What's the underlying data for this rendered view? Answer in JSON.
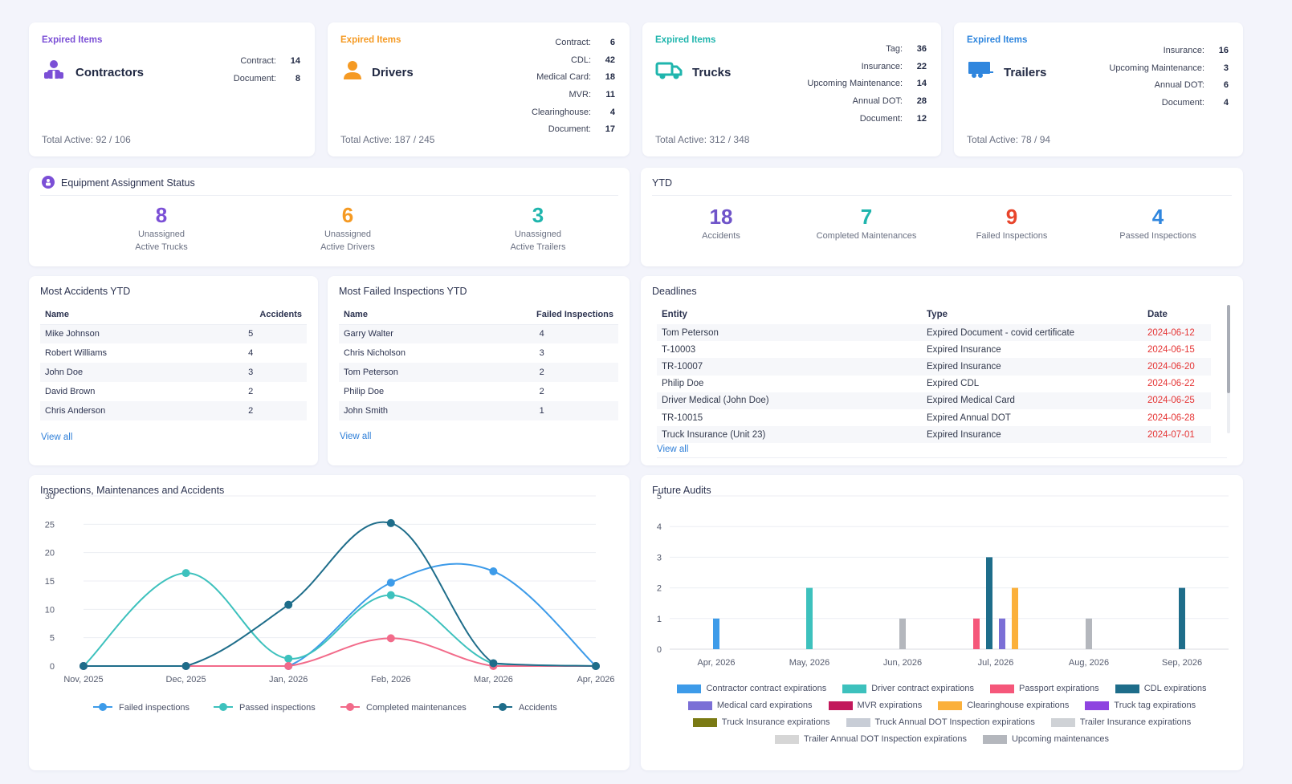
{
  "expired_label": "Expired Items",
  "cards": [
    {
      "title": "Contractors",
      "total": "Total Active: 92 / 106",
      "accent": "#7b4fd6",
      "stats": [
        {
          "label": "Contract:",
          "value": "14"
        },
        {
          "label": "Document:",
          "value": "8"
        }
      ]
    },
    {
      "title": "Drivers",
      "total": "Total Active: 187 / 245",
      "accent": "#f59a23",
      "stats": [
        {
          "label": "Contract:",
          "value": "6"
        },
        {
          "label": "CDL:",
          "value": "42"
        },
        {
          "label": "Medical Card:",
          "value": "18"
        },
        {
          "label": "MVR:",
          "value": "11"
        },
        {
          "label": "Clearinghouse:",
          "value": "4"
        },
        {
          "label": "Document:",
          "value": "17"
        }
      ]
    },
    {
      "title": "Trucks",
      "total": "Total Active: 312 / 348",
      "accent": "#1fb5ad",
      "stats": [
        {
          "label": "Tag:",
          "value": "36"
        },
        {
          "label": "Insurance:",
          "value": "22"
        },
        {
          "label": "Upcoming Maintenance:",
          "value": "14"
        },
        {
          "label": "Annual DOT:",
          "value": "28"
        },
        {
          "label": "Document:",
          "value": "12"
        }
      ]
    },
    {
      "title": "Trailers",
      "total": "Total Active: 78 / 94",
      "accent": "#2f86de",
      "stats": [
        {
          "label": "Insurance:",
          "value": "16"
        },
        {
          "label": "Upcoming Maintenance:",
          "value": "3"
        },
        {
          "label": "Annual DOT:",
          "value": "6"
        },
        {
          "label": "Document:",
          "value": "4"
        }
      ]
    }
  ],
  "equipment": {
    "title": "Equipment Assignment Status",
    "items": [
      {
        "value": "8",
        "line1": "Unassigned",
        "line2": "Active Trucks",
        "color": "#7b4fd6"
      },
      {
        "value": "6",
        "line1": "Unassigned",
        "line2": "Active Drivers",
        "color": "#f59a23"
      },
      {
        "value": "3",
        "line1": "Unassigned",
        "line2": "Active Trailers",
        "color": "#1fb5ad"
      }
    ]
  },
  "ytd": {
    "title": "YTD",
    "items": [
      {
        "value": "18",
        "label": "Accidents",
        "color": "#6f54c9"
      },
      {
        "value": "7",
        "label": "Completed Maintenances",
        "color": "#1fb5ad"
      },
      {
        "value": "9",
        "label": "Failed Inspections",
        "color": "#e8452c"
      },
      {
        "value": "4",
        "label": "Passed Inspections",
        "color": "#2f86de"
      }
    ]
  },
  "accidents": {
    "title": "Most Accidents YTD",
    "col_name": "Name",
    "col_value": "Accidents",
    "rows": [
      {
        "name": "Mike Johnson",
        "value": "5"
      },
      {
        "name": "Robert Williams",
        "value": "4"
      },
      {
        "name": "John Doe",
        "value": "3"
      },
      {
        "name": "David Brown",
        "value": "2"
      },
      {
        "name": "Chris Anderson",
        "value": "2"
      }
    ],
    "view_all": "View all"
  },
  "failed": {
    "title": "Most Failed Inspections YTD",
    "col_name": "Name",
    "col_value": "Failed Inspections",
    "rows": [
      {
        "name": "Garry Walter",
        "value": "4"
      },
      {
        "name": "Chris Nicholson",
        "value": "3"
      },
      {
        "name": "Tom Peterson",
        "value": "2"
      },
      {
        "name": "Philip Doe",
        "value": "2"
      },
      {
        "name": "John Smith",
        "value": "1"
      }
    ],
    "view_all": "View all"
  },
  "deadlines": {
    "title": "Deadlines",
    "cols": {
      "entity": "Entity",
      "type": "Type",
      "date": "Date"
    },
    "rows": [
      {
        "entity": "Tom Peterson",
        "type": "Expired Document - covid certificate",
        "date": "2024-06-12"
      },
      {
        "entity": "T-10003",
        "type": "Expired Insurance",
        "date": "2024-06-15"
      },
      {
        "entity": "TR-10007",
        "type": "Expired Insurance",
        "date": "2024-06-20"
      },
      {
        "entity": "Philip Doe",
        "type": "Expired CDL",
        "date": "2024-06-22"
      },
      {
        "entity": "Driver Medical (John Doe)",
        "type": "Expired Medical Card",
        "date": "2024-06-25"
      },
      {
        "entity": "TR-10015",
        "type": "Expired Annual DOT",
        "date": "2024-06-28"
      },
      {
        "entity": "Truck Insurance (Unit 23)",
        "type": "Expired Insurance",
        "date": "2024-07-01"
      }
    ],
    "view_all": "View all"
  },
  "line_title": "Inspections, Maintenances and Accidents",
  "audit_title": "Future Audits",
  "chart_data": [
    {
      "type": "line",
      "title": "Inspections, Maintenances and Accidents",
      "x": [
        "Nov, 2025",
        "Dec, 2025",
        "Jan, 2026",
        "Feb, 2026",
        "Mar, 2026",
        "Apr, 2026"
      ],
      "ylim": [
        0,
        30
      ],
      "yticks": [
        0,
        5,
        10,
        15,
        20,
        25,
        30
      ],
      "grid": true,
      "legend_position": "bottom",
      "series": [
        {
          "name": "Failed inspections",
          "color": "#3d9be9",
          "values": [
            0,
            0,
            0,
            14.7,
            16.7,
            0
          ]
        },
        {
          "name": "Passed inspections",
          "color": "#3dc1bd",
          "values": [
            0,
            16.4,
            1.3,
            12.5,
            0.4,
            0
          ]
        },
        {
          "name": "Completed maintenances",
          "color": "#f26b8a",
          "values": [
            0,
            0,
            0,
            4.9,
            0,
            0
          ]
        },
        {
          "name": "Accidents",
          "color": "#1e6d8a",
          "values": [
            0,
            0,
            10.8,
            25.2,
            0.5,
            0
          ]
        }
      ]
    },
    {
      "type": "bar",
      "title": "Future Audits",
      "categories": [
        "Apr, 2026",
        "May, 2026",
        "Jun, 2026",
        "Jul, 2026",
        "Aug, 2026",
        "Sep, 2026"
      ],
      "ylim": [
        0,
        5
      ],
      "yticks": [
        0,
        1,
        2,
        3,
        4,
        5
      ],
      "grid": true,
      "legend_position": "bottom",
      "series": [
        {
          "name": "Contractor contract expirations",
          "color": "#3d9be9",
          "values": [
            1,
            0,
            0,
            0,
            0,
            0
          ]
        },
        {
          "name": "Driver contract expirations",
          "color": "#3dc1bd",
          "values": [
            0,
            2,
            0,
            0,
            0,
            0
          ]
        },
        {
          "name": "Passport expirations",
          "color": "#f5577a",
          "values": [
            0,
            0,
            0,
            1,
            0,
            0
          ]
        },
        {
          "name": "CDL expirations",
          "color": "#1e6d8a",
          "values": [
            0,
            0,
            0,
            3,
            0,
            2
          ]
        },
        {
          "name": "Medical card expirations",
          "color": "#7b6fd6",
          "values": [
            0,
            0,
            0,
            1,
            0,
            0
          ]
        },
        {
          "name": "MVR expirations",
          "color": "#c2185b",
          "values": [
            0,
            0,
            0,
            0,
            0,
            0
          ]
        },
        {
          "name": "Clearinghouse expirations",
          "color": "#fbb03b",
          "values": [
            0,
            0,
            0,
            2,
            0,
            0
          ]
        },
        {
          "name": "Truck tag expirations",
          "color": "#8e44e0",
          "values": [
            0,
            0,
            0,
            0,
            0,
            0
          ]
        },
        {
          "name": "Truck Insurance expirations",
          "color": "#7a7a14",
          "values": [
            0,
            0,
            0,
            0,
            0,
            0
          ]
        },
        {
          "name": "Truck Annual DOT Inspection expirations",
          "color": "#c8cdd6",
          "values": [
            0,
            0,
            0,
            0,
            0,
            0
          ]
        },
        {
          "name": "Trailer Insurance expirations",
          "color": "#cfd2d6",
          "values": [
            0,
            0,
            0,
            0,
            0,
            0
          ]
        },
        {
          "name": "Trailer Annual DOT Inspection expirations",
          "color": "#d6d6d6",
          "values": [
            0,
            0,
            0,
            0,
            0,
            0
          ]
        },
        {
          "name": "Upcoming maintenances",
          "color": "#b4b7bd",
          "values": [
            0,
            0,
            1,
            0,
            1,
            0
          ]
        }
      ]
    }
  ]
}
